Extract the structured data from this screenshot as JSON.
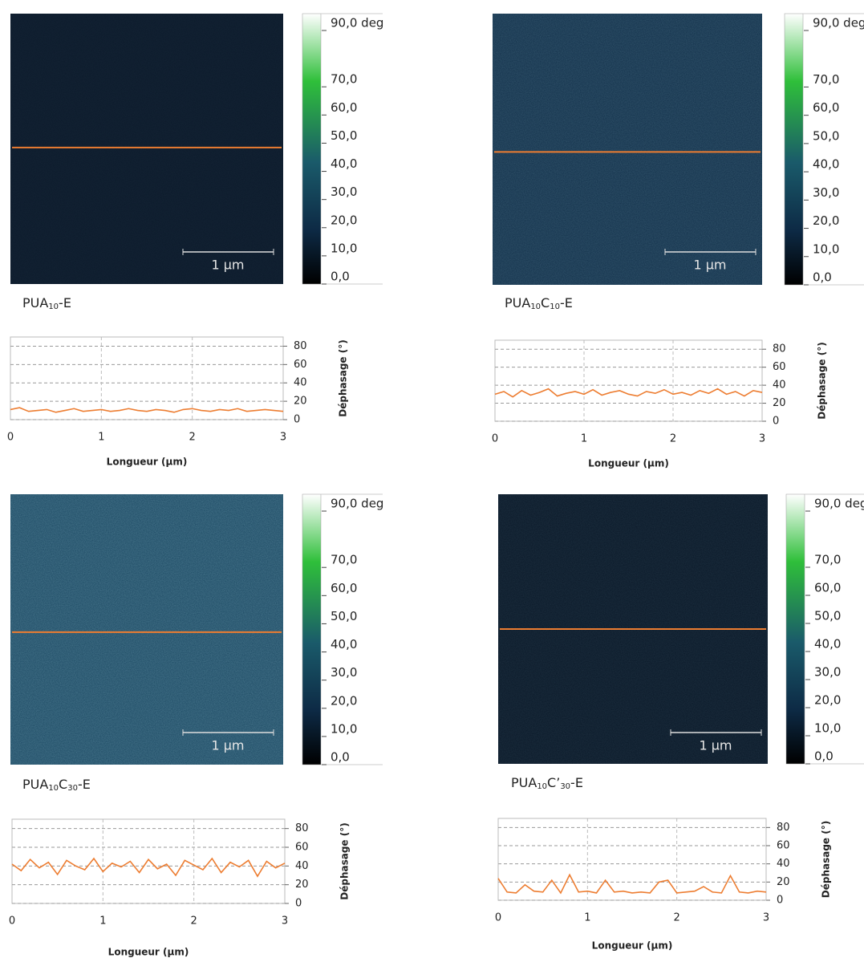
{
  "panels": [
    {
      "label": [
        "PUA",
        "10",
        "-E"
      ]
    },
    {
      "label": [
        "PUA",
        "10",
        "C",
        "10",
        "-E"
      ]
    },
    {
      "label": [
        "PUA",
        "10",
        "C",
        "30",
        "-E"
      ]
    },
    {
      "label": [
        "PUA",
        "10",
        "C’",
        "30",
        "-E"
      ]
    }
  ],
  "scale_bar_label": "1 µm",
  "colorbar_ticks": [
    {
      "value": 90,
      "label": "90,0 deg"
    },
    {
      "value": 70,
      "label": "70,0"
    },
    {
      "value": 60,
      "label": "60,0"
    },
    {
      "value": 50,
      "label": "50,0"
    },
    {
      "value": 40,
      "label": "40,0"
    },
    {
      "value": 30,
      "label": "30,0"
    },
    {
      "value": 20,
      "label": "20,0"
    },
    {
      "value": 10,
      "label": "10,0"
    },
    {
      "value": 0,
      "label": "0,0"
    }
  ],
  "chart_data": [
    {
      "type": "line",
      "x_label": "Longueur (µm)",
      "y_label": "Déphasage (°)",
      "xlim": [
        0,
        3
      ],
      "xticks": [
        0,
        1,
        2,
        3
      ],
      "ylim": [
        0,
        90
      ],
      "yticks": [
        0,
        20,
        40,
        60,
        80
      ],
      "grid": true,
      "x": [
        0,
        0.1,
        0.2,
        0.3,
        0.4,
        0.5,
        0.6,
        0.7,
        0.8,
        0.9,
        1,
        1.1,
        1.2,
        1.3,
        1.4,
        1.5,
        1.6,
        1.7,
        1.8,
        1.9,
        2,
        2.1,
        2.2,
        2.3,
        2.4,
        2.5,
        2.6,
        2.7,
        2.8,
        2.9,
        3
      ],
      "series": [
        {
          "color": "#ed7d31",
          "values": [
            11,
            13,
            9,
            10,
            11,
            8,
            10,
            12,
            9,
            10,
            11,
            9,
            10,
            12,
            10,
            9,
            11,
            10,
            8,
            11,
            12,
            10,
            9,
            11,
            10,
            12,
            9,
            10,
            11,
            10,
            9
          ]
        }
      ]
    },
    {
      "type": "line",
      "x_label": "Longueur (µm)",
      "y_label": "Déphasage (°)",
      "xlim": [
        0,
        3
      ],
      "xticks": [
        0,
        1,
        2,
        3
      ],
      "ylim": [
        0,
        90
      ],
      "yticks": [
        0,
        20,
        40,
        60,
        80
      ],
      "grid": true,
      "x": [
        0,
        0.1,
        0.2,
        0.3,
        0.4,
        0.5,
        0.6,
        0.7,
        0.8,
        0.9,
        1,
        1.1,
        1.2,
        1.3,
        1.4,
        1.5,
        1.6,
        1.7,
        1.8,
        1.9,
        2,
        2.1,
        2.2,
        2.3,
        2.4,
        2.5,
        2.6,
        2.7,
        2.8,
        2.9,
        3
      ],
      "series": [
        {
          "color": "#ed7d31",
          "values": [
            30,
            33,
            27,
            34,
            29,
            32,
            36,
            28,
            31,
            33,
            30,
            35,
            29,
            32,
            34,
            30,
            28,
            33,
            31,
            35,
            30,
            32,
            29,
            34,
            31,
            36,
            30,
            33,
            28,
            34,
            32
          ]
        }
      ]
    },
    {
      "type": "line",
      "x_label": "Longueur (µm)",
      "y_label": "Déphasage (°)",
      "xlim": [
        0,
        3
      ],
      "xticks": [
        0,
        1,
        2,
        3
      ],
      "ylim": [
        0,
        90
      ],
      "yticks": [
        0,
        20,
        40,
        60,
        80
      ],
      "grid": true,
      "x": [
        0,
        0.1,
        0.2,
        0.3,
        0.4,
        0.5,
        0.6,
        0.7,
        0.8,
        0.9,
        1,
        1.1,
        1.2,
        1.3,
        1.4,
        1.5,
        1.6,
        1.7,
        1.8,
        1.9,
        2,
        2.1,
        2.2,
        2.3,
        2.4,
        2.5,
        2.6,
        2.7,
        2.8,
        2.9,
        3
      ],
      "series": [
        {
          "color": "#ed7d31",
          "values": [
            42,
            35,
            47,
            38,
            44,
            31,
            46,
            40,
            36,
            48,
            34,
            43,
            39,
            45,
            33,
            47,
            37,
            42,
            30,
            46,
            41,
            36,
            48,
            33,
            44,
            39,
            46,
            29,
            45,
            38,
            43
          ]
        }
      ]
    },
    {
      "type": "line",
      "x_label": "Longueur (µm)",
      "y_label": "Déphasage (°)",
      "xlim": [
        0,
        3
      ],
      "xticks": [
        0,
        1,
        2,
        3
      ],
      "ylim": [
        0,
        90
      ],
      "yticks": [
        0,
        20,
        40,
        60,
        80
      ],
      "grid": true,
      "x": [
        0,
        0.1,
        0.2,
        0.3,
        0.4,
        0.5,
        0.6,
        0.7,
        0.8,
        0.9,
        1,
        1.1,
        1.2,
        1.3,
        1.4,
        1.5,
        1.6,
        1.7,
        1.8,
        1.9,
        2,
        2.1,
        2.2,
        2.3,
        2.4,
        2.5,
        2.6,
        2.7,
        2.8,
        2.9,
        3
      ],
      "series": [
        {
          "color": "#ed7d31",
          "values": [
            24,
            9,
            8,
            17,
            10,
            9,
            22,
            8,
            28,
            9,
            10,
            8,
            22,
            9,
            10,
            8,
            9,
            8,
            20,
            22,
            8,
            9,
            10,
            15,
            9,
            8,
            27,
            9,
            8,
            10,
            9
          ]
        }
      ]
    }
  ]
}
